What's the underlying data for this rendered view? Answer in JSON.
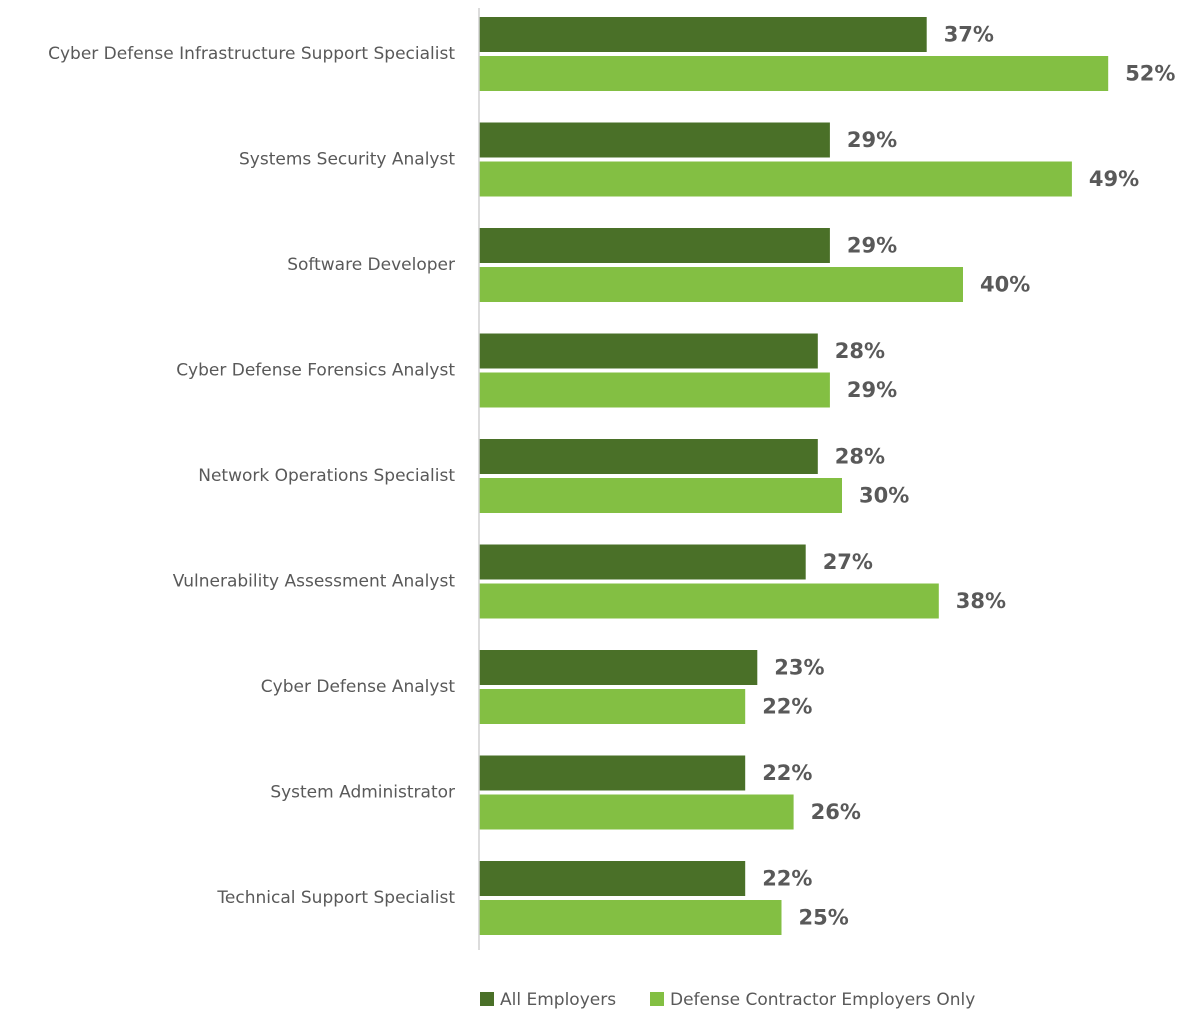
{
  "chart_data": {
    "type": "bar",
    "orientation": "horizontal",
    "categories": [
      "Cyber Defense Infrastructure Support Specialist",
      "Systems Security Analyst",
      "Software Developer",
      "Cyber Defense Forensics Analyst",
      "Network Operations Specialist",
      "Vulnerability Assessment Analyst",
      "Cyber Defense Analyst",
      "System Administrator",
      "Technical Support Specialist"
    ],
    "series": [
      {
        "name": "All Employers",
        "color": "#4a7028",
        "values": [
          37,
          29,
          29,
          28,
          28,
          27,
          23,
          22,
          22
        ],
        "labels": [
          "37%",
          "29%",
          "29%",
          "28%",
          "28%",
          "27%",
          "23%",
          "22%",
          "22%"
        ]
      },
      {
        "name": "Defense Contractor Employers Only",
        "color": "#83bf43",
        "values": [
          52,
          49,
          40,
          29,
          30,
          38,
          22,
          26,
          25
        ],
        "labels": [
          "52%",
          "49%",
          "40%",
          "29%",
          "30%",
          "38%",
          "22%",
          "26%",
          "25%"
        ]
      }
    ],
    "xlim": [
      0,
      60
    ],
    "grid": false,
    "legend_position": "bottom"
  }
}
